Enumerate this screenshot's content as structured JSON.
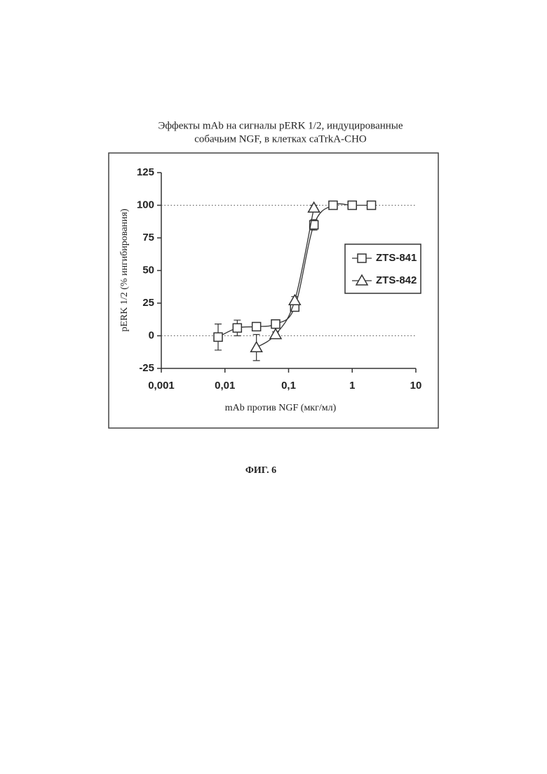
{
  "chart_data": {
    "type": "scatter",
    "title": [
      "Эффекты mAb на сигналы pERK 1/2, индуцированные",
      "собачьим NGF, в клетках caTrkA-CHO"
    ],
    "x_label": "mAb против NGF (мкг/мл)",
    "y_label": "pERK 1/2 (% ингибирования)",
    "x_scale": "log",
    "xlim": [
      0.001,
      10
    ],
    "xticks": [
      {
        "value": 0.001,
        "label": "0,001"
      },
      {
        "value": 0.01,
        "label": "0,01"
      },
      {
        "value": 0.1,
        "label": "0,1"
      },
      1,
      10
    ],
    "ylim": [
      -25,
      125
    ],
    "yticks": [
      -25,
      0,
      25,
      50,
      75,
      100,
      125
    ],
    "reference_lines": [
      0,
      100
    ],
    "legend_position": "right",
    "series": [
      {
        "name": "ZTS-841",
        "marker": "square",
        "color": "#333333",
        "x": [
          0.0078125,
          0.015625,
          0.03125,
          0.0625,
          0.125,
          0.25,
          0.5,
          1,
          2
        ],
        "values": [
          -1,
          6,
          7,
          9,
          22,
          85,
          100,
          100,
          100
        ],
        "errors": [
          10,
          6,
          2,
          2,
          3,
          4,
          2,
          2,
          3
        ]
      },
      {
        "name": "ZTS-842",
        "marker": "triangle",
        "color": "#333333",
        "x": [
          0.03125,
          0.0625,
          0.125,
          0.25
        ],
        "values": [
          -9,
          1,
          27,
          98
        ],
        "errors": [
          10,
          2,
          3,
          2
        ]
      }
    ]
  },
  "caption": "ФИГ. 6"
}
